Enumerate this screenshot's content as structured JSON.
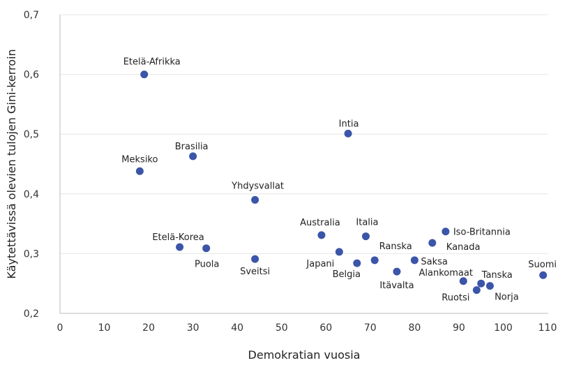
{
  "chart_data": {
    "type": "scatter",
    "xlabel": "Demokratian vuosia",
    "ylabel": "Käytettävissä olevien tulojen Gini-kerroin",
    "xlim": [
      0,
      110
    ],
    "ylim": [
      0.2,
      0.7
    ],
    "x_ticks": [
      "0",
      "10",
      "20",
      "30",
      "40",
      "50",
      "60",
      "70",
      "80",
      "90",
      "100",
      "110"
    ],
    "y_ticks": [
      "0,2",
      "0,3",
      "0,4",
      "0,5",
      "0,6",
      "0,7"
    ],
    "grid": "horizontal",
    "marker_color": "#3b55a8",
    "points": [
      {
        "label": "Etelä-Afrikka",
        "x": 19,
        "y": 0.6
      },
      {
        "label": "Intia",
        "x": 65,
        "y": 0.501
      },
      {
        "label": "Brasilia",
        "x": 30,
        "y": 0.463
      },
      {
        "label": "Meksiko",
        "x": 18,
        "y": 0.438
      },
      {
        "label": "Yhdysvallat",
        "x": 44,
        "y": 0.39
      },
      {
        "label": "Australia",
        "x": 59,
        "y": 0.331
      },
      {
        "label": "Italia",
        "x": 69,
        "y": 0.329
      },
      {
        "label": "Iso-Britannia",
        "x": 87,
        "y": 0.337
      },
      {
        "label": "Kanada",
        "x": 84,
        "y": 0.318
      },
      {
        "label": "Etelä-Korea",
        "x": 27,
        "y": 0.311
      },
      {
        "label": "Puola",
        "x": 33,
        "y": 0.309
      },
      {
        "label": "Japani",
        "x": 63,
        "y": 0.303
      },
      {
        "label": "Sveitsi",
        "x": 44,
        "y": 0.291
      },
      {
        "label": "Ranska",
        "x": 71,
        "y": 0.289
      },
      {
        "label": "Saksa",
        "x": 80,
        "y": 0.289
      },
      {
        "label": "Belgia",
        "x": 67,
        "y": 0.284
      },
      {
        "label": "Itävalta",
        "x": 76,
        "y": 0.27
      },
      {
        "label": "Suomi",
        "x": 109,
        "y": 0.264
      },
      {
        "label": "Alankomaat",
        "x": 91,
        "y": 0.254
      },
      {
        "label": "Tanska",
        "x": 95,
        "y": 0.25
      },
      {
        "label": "Norja",
        "x": 97,
        "y": 0.246
      },
      {
        "label": "Ruotsi",
        "x": 94,
        "y": 0.239
      }
    ]
  }
}
